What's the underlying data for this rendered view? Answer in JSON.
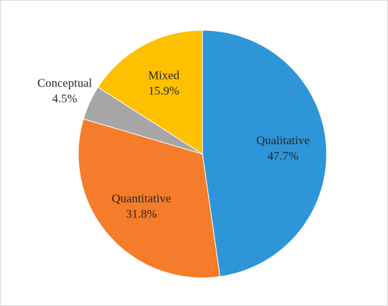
{
  "chart_data": {
    "type": "pie",
    "categories": [
      "Qualitative",
      "Quantitative",
      "Conceptual",
      "Mixed"
    ],
    "values": [
      47.7,
      31.8,
      4.5,
      15.9
    ],
    "value_labels": [
      "47.7%",
      "31.8%",
      "4.5%",
      "15.9%"
    ],
    "colors": [
      "#2e95d8",
      "#f57c2a",
      "#a6a6a6",
      "#ffc000"
    ]
  }
}
